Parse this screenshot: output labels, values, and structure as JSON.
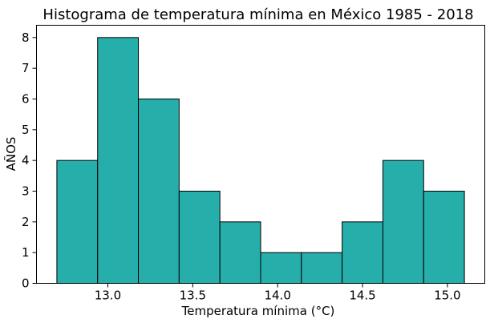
{
  "chart_data": {
    "type": "bar",
    "title": "Histograma de temperatura mínima en México 1985 - 2018",
    "xlabel": "Temperatura mínima (°C)",
    "ylabel": "AÑOS",
    "bin_edges": [
      12.7,
      12.94,
      13.18,
      13.42,
      13.66,
      13.9,
      14.14,
      14.38,
      14.62,
      14.86,
      15.1
    ],
    "values": [
      4,
      8,
      6,
      3,
      2,
      1,
      1,
      2,
      4,
      3
    ],
    "xlim": [
      12.58,
      15.22
    ],
    "ylim": [
      0,
      8.4
    ],
    "xticks": [
      13.0,
      13.5,
      14.0,
      14.5,
      15.0
    ],
    "xtick_labels": [
      "13.0",
      "13.5",
      "14.0",
      "14.5",
      "15.0"
    ],
    "yticks": [
      0,
      1,
      2,
      3,
      4,
      5,
      6,
      7,
      8
    ],
    "ytick_labels": [
      "0",
      "1",
      "2",
      "3",
      "4",
      "5",
      "6",
      "7",
      "8"
    ],
    "bar_color": "#26aeaa",
    "edge_color": "#000000",
    "grid": false
  }
}
